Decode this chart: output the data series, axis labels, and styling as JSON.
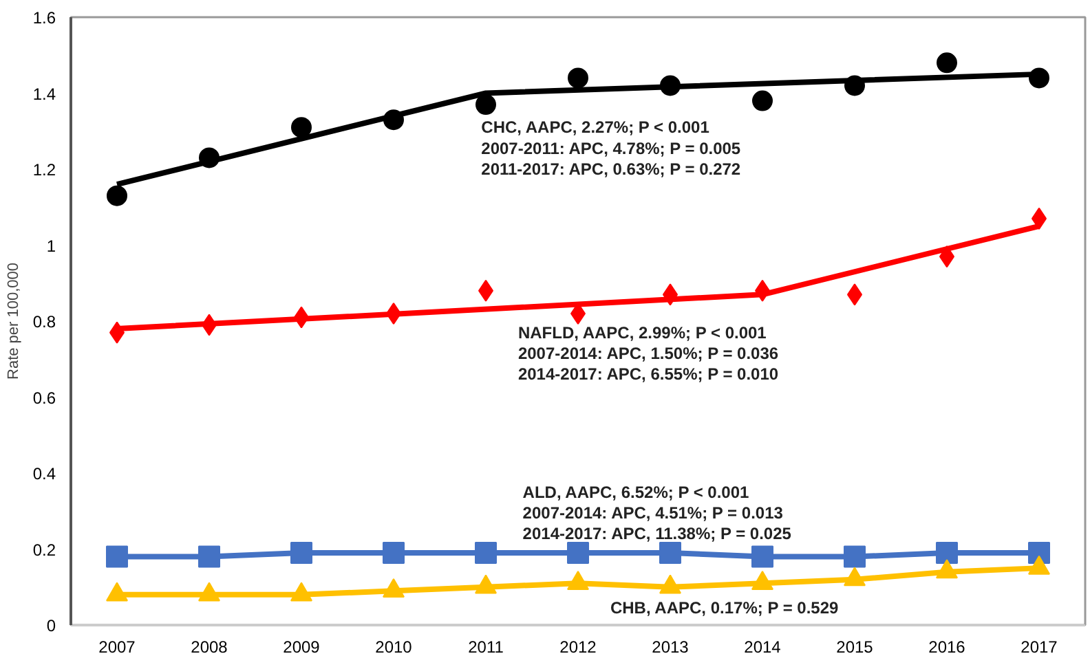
{
  "chart_data": {
    "type": "line",
    "ylabel": "Rate per 100,000",
    "x": [
      2007,
      2008,
      2009,
      2010,
      2011,
      2012,
      2013,
      2014,
      2015,
      2016,
      2017
    ],
    "xlim": [
      2006.5,
      2017.5
    ],
    "xticks": [
      2007,
      2008,
      2009,
      2010,
      2011,
      2012,
      2013,
      2014,
      2015,
      2016,
      2017
    ],
    "ylim": [
      0,
      1.6
    ],
    "yticks": [
      0,
      0.2,
      0.4,
      0.6,
      0.8,
      1,
      1.2,
      1.4,
      1.6
    ],
    "series": [
      {
        "type": "scatter",
        "marker": "circle",
        "color": "#000000",
        "values": [
          1.13,
          1.23,
          1.31,
          1.33,
          1.37,
          1.44,
          1.42,
          1.38,
          1.42,
          1.48,
          1.44
        ]
      },
      {
        "marker": "none",
        "color": "#000000",
        "x": [
          2007,
          2011,
          2017
        ],
        "values": [
          1.16,
          1.4,
          1.45
        ]
      },
      {
        "type": "scatter",
        "marker": "diamond",
        "color": "#ff0000",
        "values": [
          0.77,
          0.79,
          0.81,
          0.82,
          0.88,
          0.82,
          0.87,
          0.88,
          0.87,
          0.97,
          1.07
        ]
      },
      {
        "marker": "none",
        "color": "#ff0000",
        "x": [
          2007,
          2014,
          2017
        ],
        "values": [
          0.78,
          0.87,
          1.05
        ]
      },
      {
        "marker": "square",
        "color": "#4472c4",
        "values": [
          0.18,
          0.18,
          0.19,
          0.19,
          0.19,
          0.19,
          0.19,
          0.18,
          0.18,
          0.19,
          0.19
        ]
      },
      {
        "marker": "triangle",
        "color": "#ffc000",
        "values": [
          0.08,
          0.08,
          0.08,
          0.09,
          0.1,
          0.11,
          0.1,
          0.11,
          0.12,
          0.14,
          0.15
        ]
      }
    ],
    "annotations": [
      "CHC, AAPC, 2.27%; P < 0.001",
      "2007-2011: APC, 4.78%; P = 0.005",
      "2011-2017: APC, 0.63%; P = 0.272",
      "NAFLD, AAPC, 2.99%; P < 0.001",
      "2007-2014: APC, 1.50%; P = 0.036",
      "2014-2017: APC, 6.55%; P = 0.010",
      "ALD, AAPC, 6.52%;  P < 0.001",
      "2007-2014: APC, 4.51%; P = 0.013",
      "2014-2017: APC, 11.38%; P = 0.025",
      "CHB, AAPC, 0.17%; P = 0.529"
    ]
  }
}
